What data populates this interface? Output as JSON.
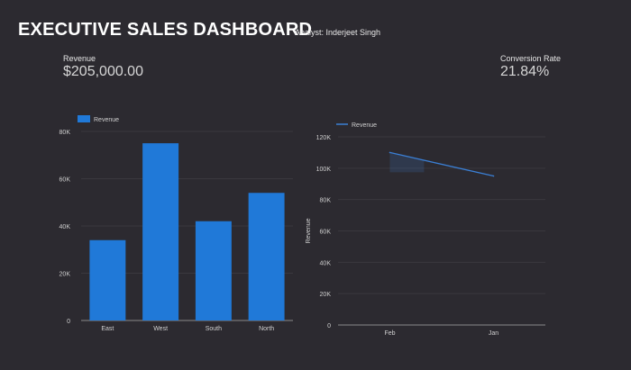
{
  "header": {
    "title": "EXECUTIVE SALES DASHBOARD",
    "analyst": "Analyst: Inderjeet Singh"
  },
  "kpis": {
    "revenue": {
      "label": "Revenue",
      "value": "$205,000.00"
    },
    "conversion": {
      "label": "Conversion Rate",
      "value": "21.84%"
    }
  },
  "colors": {
    "background": "#2c2a30",
    "bar": "#2079d8",
    "line": "#3b7fd4",
    "grid": "#3a383e",
    "axis_text": "#cfcfcf"
  },
  "chart_data": [
    {
      "type": "bar",
      "legend": [
        "Revenue"
      ],
      "legend_position": "top-left",
      "categories": [
        "East",
        "West",
        "South",
        "North"
      ],
      "series": [
        {
          "name": "Revenue",
          "values": [
            34000,
            75000,
            42000,
            54000
          ]
        }
      ],
      "ylim": [
        0,
        80000
      ],
      "yticks": [
        0,
        20000,
        40000,
        60000,
        80000
      ],
      "ytick_labels": [
        "0",
        "20K",
        "40K",
        "60K",
        "80K"
      ],
      "grid": true
    },
    {
      "type": "area",
      "legend": [
        "Revenue"
      ],
      "legend_position": "top-left",
      "ylabel": "Revenue",
      "categories": [
        "Feb",
        "Jan"
      ],
      "series": [
        {
          "name": "Revenue",
          "values": [
            110000,
            95000
          ]
        }
      ],
      "ylim": [
        0,
        120000
      ],
      "yticks": [
        0,
        20000,
        40000,
        60000,
        80000,
        100000,
        120000
      ],
      "ytick_labels": [
        "0",
        "20K",
        "40K",
        "60K",
        "80K",
        "100K",
        "120K"
      ],
      "grid": true
    }
  ]
}
